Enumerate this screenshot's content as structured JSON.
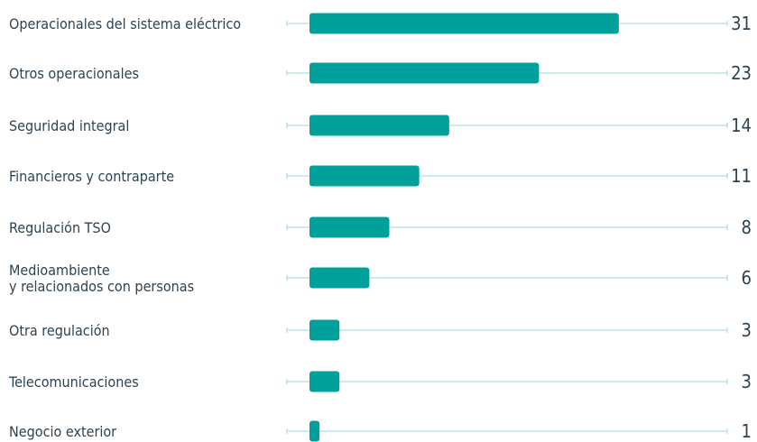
{
  "chart_data": {
    "type": "bar",
    "orientation": "horizontal",
    "title": "",
    "xlabel": "",
    "ylabel": "",
    "categories": [
      [
        "Operacionales del sistema eléctrico"
      ],
      [
        "Otros operacionales"
      ],
      [
        "Seguridad integral"
      ],
      [
        "Financieros y contraparte"
      ],
      [
        "Regulación TSO"
      ],
      [
        "Medioambiente",
        "y relacionados con personas"
      ],
      [
        "Otra regulación"
      ],
      [
        "Telecomunicaciones"
      ],
      [
        "Negocio exterior"
      ]
    ],
    "values": [
      31,
      23,
      14,
      11,
      8,
      6,
      3,
      3,
      1
    ],
    "value_labels": [
      "31",
      "23",
      "14",
      "11",
      "8",
      "6",
      "3",
      "3",
      "1"
    ],
    "grid": false,
    "legend": "none",
    "colors": {
      "bar": "#00a19a",
      "line": "#9fd6d9",
      "text": "#2e4352"
    }
  }
}
